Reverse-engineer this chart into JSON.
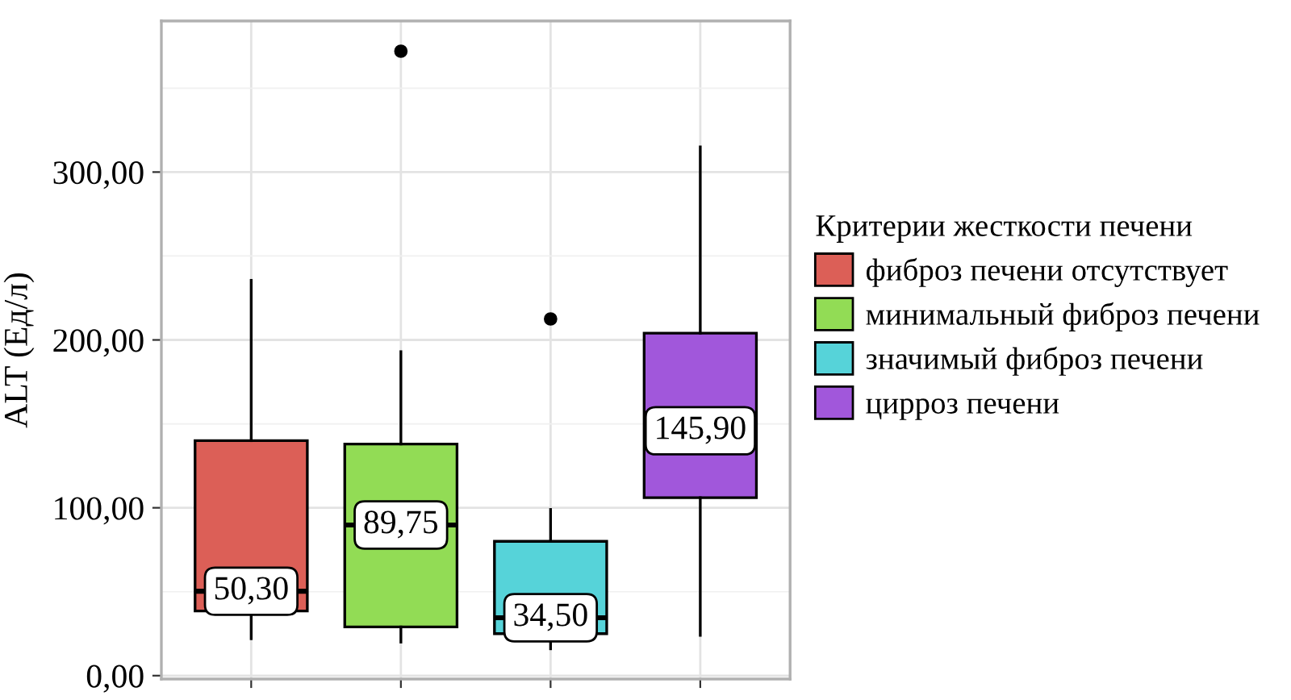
{
  "chart_data": {
    "type": "box",
    "ylabel": "ALT (Ед/л)",
    "legend_title": "Критерии жесткости печени",
    "categories": [
      null,
      null,
      null,
      null
    ],
    "ylim": [
      -2,
      390
    ],
    "yticks": [
      {
        "value": 0,
        "label": "0,00"
      },
      {
        "value": 50,
        "label": null
      },
      {
        "value": 100,
        "label": "100,00"
      },
      {
        "value": 150,
        "label": null
      },
      {
        "value": 200,
        "label": "200,00"
      },
      {
        "value": 250,
        "label": null
      },
      {
        "value": 300,
        "label": "300,00"
      },
      {
        "value": 350,
        "label": null
      }
    ],
    "grid": true,
    "legend": "right",
    "series": [
      {
        "name": "фиброз печени отсутствует",
        "color": "#dc5f57",
        "boxes": [
          {
            "low": 22,
            "q1": 38.5,
            "median": 50.3,
            "q3": 140,
            "high": 235.5
          },
          null,
          null,
          null
        ],
        "value_labels": [
          "50,30",
          null,
          null,
          null
        ]
      },
      {
        "name": "минимальный фиброз печени",
        "color": "#92dc55",
        "boxes": [
          null,
          {
            "low": 20,
            "q1": 29,
            "median": 89.75,
            "q3": 138,
            "high": 193,
            "outliers": [
              372
            ]
          },
          null,
          null
        ],
        "value_labels": [
          null,
          "89,75",
          null,
          null
        ]
      },
      {
        "name": "значимый фиброз печени",
        "color": "#56d3d9",
        "boxes": [
          null,
          null,
          {
            "low": 16,
            "q1": 25,
            "median": 34.5,
            "q3": 80,
            "high": 99,
            "outliers": [
              212.5
            ]
          },
          null
        ],
        "value_labels": [
          null,
          null,
          "34,50",
          null
        ]
      },
      {
        "name": "цирроз печени",
        "color": "#a157db",
        "boxes": [
          null,
          null,
          null,
          {
            "low": 24,
            "q1": 106,
            "median": 145.9,
            "q3": 204,
            "high": 315
          }
        ],
        "value_labels": [
          null,
          null,
          null,
          "145,90"
        ]
      }
    ]
  }
}
